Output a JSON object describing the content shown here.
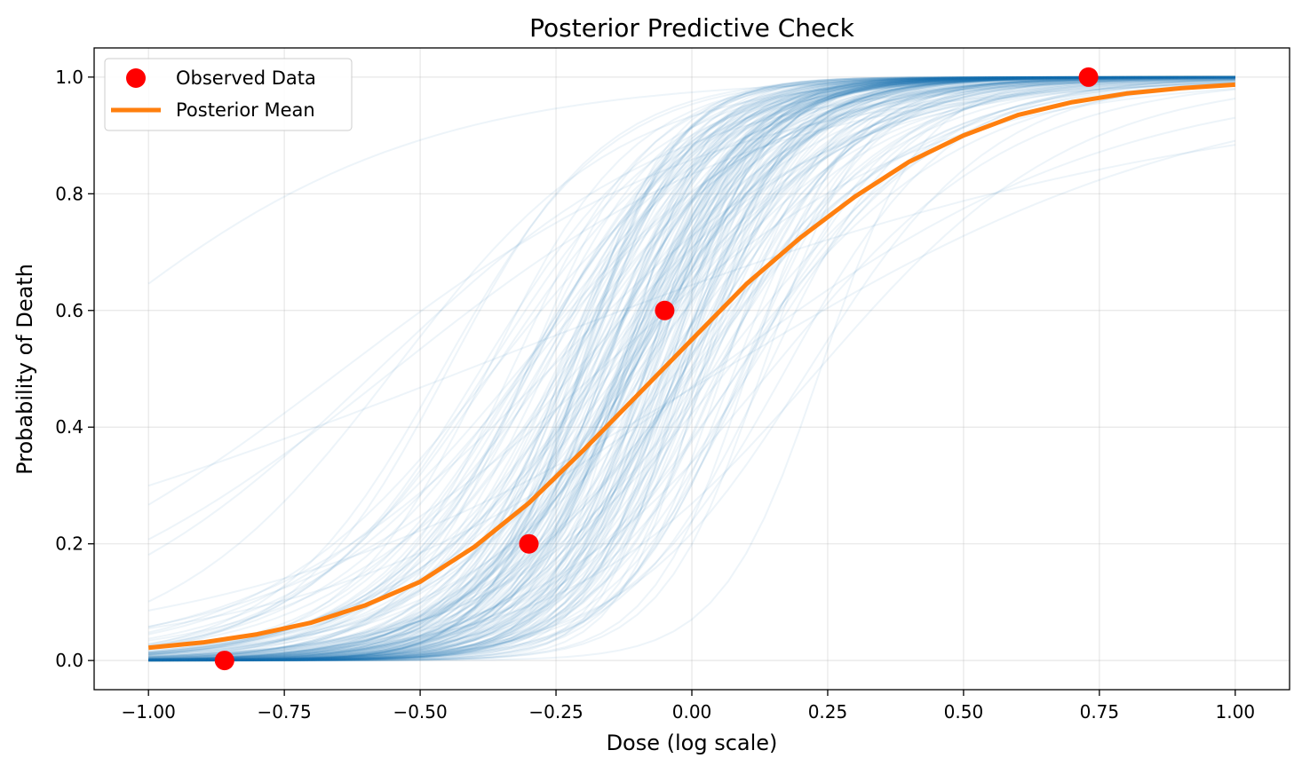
{
  "chart_data": {
    "type": "line",
    "title": "Posterior Predictive Check",
    "xlabel": "Dose (log scale)",
    "ylabel": "Probability of Death",
    "xlim": [
      -1.1,
      1.1
    ],
    "ylim": [
      -0.05,
      1.05
    ],
    "x_ticks": [
      -1.0,
      -0.75,
      -0.5,
      -0.25,
      0.0,
      0.25,
      0.5,
      0.75,
      1.0
    ],
    "x_tick_labels": [
      "−1.00",
      "−0.75",
      "−0.50",
      "−0.25",
      "0.00",
      "0.25",
      "0.50",
      "0.75",
      "1.00"
    ],
    "y_ticks": [
      0.0,
      0.2,
      0.4,
      0.6,
      0.8,
      1.0
    ],
    "y_tick_labels": [
      "0.0",
      "0.2",
      "0.4",
      "0.6",
      "0.8",
      "1.0"
    ],
    "grid": true,
    "legend_position": "upper-left",
    "series": [
      {
        "name": "Observed Data",
        "kind": "scatter",
        "color": "#ff0000",
        "x": [
          -0.86,
          -0.3,
          -0.05,
          0.73
        ],
        "y": [
          0.0,
          0.2,
          0.6,
          1.0
        ]
      },
      {
        "name": "Posterior Mean",
        "kind": "line",
        "color": "#ff7f0e",
        "x": [
          -1.0,
          -0.9,
          -0.8,
          -0.7,
          -0.6,
          -0.5,
          -0.4,
          -0.3,
          -0.2,
          -0.1,
          0.0,
          0.1,
          0.2,
          0.3,
          0.4,
          0.5,
          0.6,
          0.7,
          0.8,
          0.9,
          1.0
        ],
        "y": [
          0.022,
          0.031,
          0.045,
          0.065,
          0.095,
          0.135,
          0.195,
          0.27,
          0.36,
          0.455,
          0.55,
          0.645,
          0.725,
          0.795,
          0.855,
          0.9,
          0.935,
          0.957,
          0.972,
          0.981,
          0.987
        ]
      },
      {
        "kind": "posterior-samples",
        "color": "#1f77b4",
        "model": "logistic",
        "alpha_mean": 0.9,
        "alpha_sd": 1.0,
        "beta_mean": 8.0,
        "beta_sd": 2.5,
        "count": 200
      }
    ]
  }
}
